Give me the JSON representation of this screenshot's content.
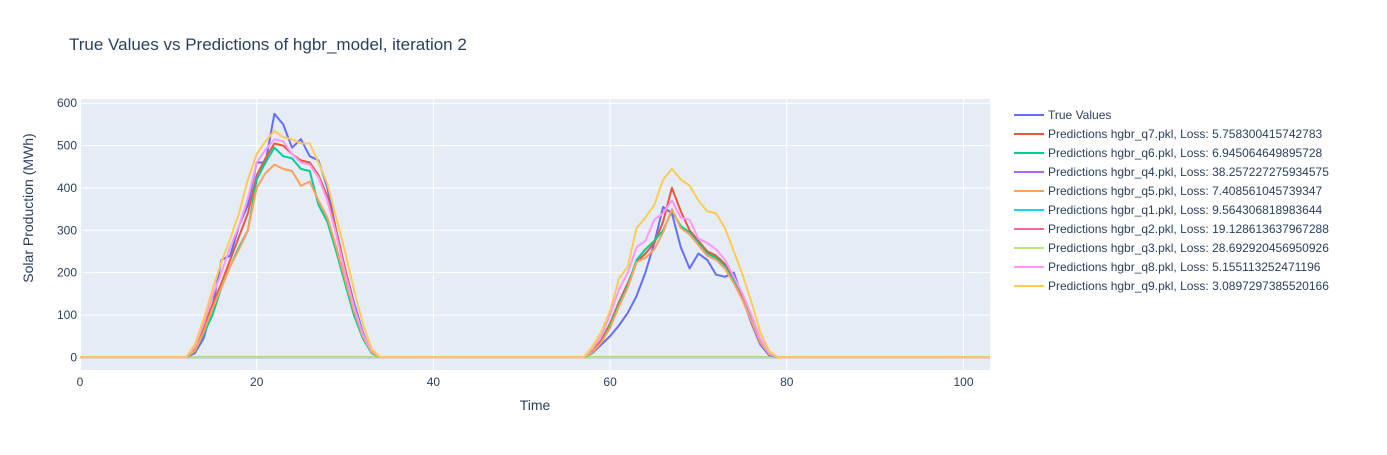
{
  "chart_data": {
    "type": "line",
    "title": "True Values vs Predictions of hgbr_model, iteration 2",
    "xlabel": "Time",
    "ylabel": "Solar Production (MWh)",
    "xlim": [
      0,
      103
    ],
    "ylim": [
      -30,
      610
    ],
    "xticks": [
      0,
      20,
      40,
      60,
      80,
      100
    ],
    "yticks": [
      0,
      100,
      200,
      300,
      400,
      500,
      600
    ],
    "grid": true,
    "legend_position": "right",
    "series": [
      {
        "name": "True Values",
        "color": "#636efa",
        "points": [
          [
            0,
            0
          ],
          [
            12,
            0
          ],
          [
            13,
            10
          ],
          [
            14,
            45
          ],
          [
            15,
            120
          ],
          [
            16,
            230
          ],
          [
            17,
            240
          ],
          [
            18,
            310
          ],
          [
            19,
            360
          ],
          [
            20,
            460
          ],
          [
            21,
            460
          ],
          [
            22,
            575
          ],
          [
            23,
            550
          ],
          [
            24,
            495
          ],
          [
            25,
            515
          ],
          [
            26,
            475
          ],
          [
            27,
            465
          ],
          [
            28,
            400
          ],
          [
            29,
            300
          ],
          [
            30,
            210
          ],
          [
            31,
            130
          ],
          [
            32,
            60
          ],
          [
            33,
            10
          ],
          [
            34,
            0
          ],
          [
            57,
            0
          ],
          [
            58,
            10
          ],
          [
            59,
            30
          ],
          [
            60,
            50
          ],
          [
            61,
            75
          ],
          [
            62,
            105
          ],
          [
            63,
            145
          ],
          [
            64,
            200
          ],
          [
            65,
            270
          ],
          [
            66,
            355
          ],
          [
            67,
            340
          ],
          [
            68,
            260
          ],
          [
            69,
            210
          ],
          [
            70,
            245
          ],
          [
            71,
            230
          ],
          [
            72,
            195
          ],
          [
            73,
            190
          ],
          [
            74,
            200
          ],
          [
            75,
            140
          ],
          [
            76,
            80
          ],
          [
            77,
            30
          ],
          [
            78,
            5
          ],
          [
            79,
            0
          ],
          [
            103,
            0
          ]
        ]
      },
      {
        "name": "Predictions hgbr_q7.pkl, Loss: 5.758300415742783",
        "color": "#EF553B",
        "points": [
          [
            0,
            0
          ],
          [
            12,
            0
          ],
          [
            13,
            20
          ],
          [
            14,
            70
          ],
          [
            15,
            125
          ],
          [
            16,
            175
          ],
          [
            17,
            230
          ],
          [
            18,
            285
          ],
          [
            19,
            340
          ],
          [
            20,
            430
          ],
          [
            21,
            470
          ],
          [
            22,
            505
          ],
          [
            23,
            500
          ],
          [
            24,
            480
          ],
          [
            25,
            465
          ],
          [
            26,
            460
          ],
          [
            27,
            430
          ],
          [
            28,
            380
          ],
          [
            29,
            300
          ],
          [
            30,
            210
          ],
          [
            31,
            120
          ],
          [
            32,
            55
          ],
          [
            33,
            15
          ],
          [
            34,
            0
          ],
          [
            57,
            0
          ],
          [
            58,
            15
          ],
          [
            59,
            40
          ],
          [
            60,
            80
          ],
          [
            61,
            130
          ],
          [
            62,
            175
          ],
          [
            63,
            225
          ],
          [
            64,
            245
          ],
          [
            65,
            270
          ],
          [
            66,
            320
          ],
          [
            67,
            400
          ],
          [
            68,
            345
          ],
          [
            69,
            300
          ],
          [
            70,
            275
          ],
          [
            71,
            250
          ],
          [
            72,
            240
          ],
          [
            73,
            220
          ],
          [
            74,
            185
          ],
          [
            75,
            140
          ],
          [
            76,
            95
          ],
          [
            77,
            40
          ],
          [
            78,
            10
          ],
          [
            79,
            0
          ],
          [
            103,
            0
          ]
        ]
      },
      {
        "name": "Predictions hgbr_q6.pkl, Loss: 6.945064649895728",
        "color": "#00cc96",
        "points": [
          [
            0,
            0
          ],
          [
            12,
            0
          ],
          [
            13,
            15
          ],
          [
            14,
            55
          ],
          [
            15,
            100
          ],
          [
            16,
            165
          ],
          [
            17,
            215
          ],
          [
            18,
            260
          ],
          [
            19,
            300
          ],
          [
            20,
            420
          ],
          [
            21,
            460
          ],
          [
            22,
            495
          ],
          [
            23,
            475
          ],
          [
            24,
            470
          ],
          [
            25,
            445
          ],
          [
            26,
            440
          ],
          [
            27,
            360
          ],
          [
            28,
            320
          ],
          [
            29,
            250
          ],
          [
            30,
            175
          ],
          [
            31,
            100
          ],
          [
            32,
            45
          ],
          [
            33,
            10
          ],
          [
            34,
            0
          ],
          [
            57,
            0
          ],
          [
            58,
            10
          ],
          [
            59,
            35
          ],
          [
            60,
            75
          ],
          [
            61,
            125
          ],
          [
            62,
            170
          ],
          [
            63,
            230
          ],
          [
            64,
            255
          ],
          [
            65,
            275
          ],
          [
            66,
            300
          ],
          [
            67,
            345
          ],
          [
            68,
            310
          ],
          [
            69,
            295
          ],
          [
            70,
            270
          ],
          [
            71,
            245
          ],
          [
            72,
            235
          ],
          [
            73,
            215
          ],
          [
            74,
            180
          ],
          [
            75,
            135
          ],
          [
            76,
            90
          ],
          [
            77,
            35
          ],
          [
            78,
            8
          ],
          [
            79,
            0
          ],
          [
            103,
            0
          ]
        ]
      },
      {
        "name": "Predictions hgbr_q4.pkl, Loss: 38.257227275934575",
        "color": "#ab63fa",
        "points": [
          [
            0,
            0
          ],
          [
            103,
            0
          ]
        ]
      },
      {
        "name": "Predictions hgbr_q5.pkl, Loss: 7.408561045739347",
        "color": "#FFA15A",
        "points": [
          [
            0,
            0
          ],
          [
            12,
            0
          ],
          [
            13,
            15
          ],
          [
            14,
            60
          ],
          [
            15,
            115
          ],
          [
            16,
            165
          ],
          [
            17,
            215
          ],
          [
            18,
            255
          ],
          [
            19,
            300
          ],
          [
            20,
            400
          ],
          [
            21,
            435
          ],
          [
            22,
            455
          ],
          [
            23,
            445
          ],
          [
            24,
            440
          ],
          [
            25,
            405
          ],
          [
            26,
            415
          ],
          [
            27,
            370
          ],
          [
            28,
            330
          ],
          [
            29,
            260
          ],
          [
            30,
            185
          ],
          [
            31,
            110
          ],
          [
            32,
            50
          ],
          [
            33,
            12
          ],
          [
            34,
            0
          ],
          [
            57,
            0
          ],
          [
            58,
            12
          ],
          [
            59,
            35
          ],
          [
            60,
            70
          ],
          [
            61,
            120
          ],
          [
            62,
            165
          ],
          [
            63,
            225
          ],
          [
            64,
            235
          ],
          [
            65,
            255
          ],
          [
            66,
            295
          ],
          [
            67,
            350
          ],
          [
            68,
            305
          ],
          [
            69,
            290
          ],
          [
            70,
            265
          ],
          [
            71,
            240
          ],
          [
            72,
            230
          ],
          [
            73,
            210
          ],
          [
            74,
            175
          ],
          [
            75,
            135
          ],
          [
            76,
            85
          ],
          [
            77,
            35
          ],
          [
            78,
            8
          ],
          [
            79,
            0
          ],
          [
            103,
            0
          ]
        ]
      },
      {
        "name": "Predictions hgbr_q1.pkl, Loss: 9.564306818983644",
        "color": "#19d3f3",
        "points": [
          [
            0,
            0
          ],
          [
            103,
            0
          ]
        ]
      },
      {
        "name": "Predictions hgbr_q2.pkl, Loss: 19.128613637967288",
        "color": "#FF6692",
        "points": [
          [
            0,
            0
          ],
          [
            103,
            0
          ]
        ]
      },
      {
        "name": "Predictions hgbr_q3.pkl, Loss: 28.692920456950926",
        "color": "#B6E880",
        "points": [
          [
            0,
            0
          ],
          [
            103,
            0
          ]
        ]
      },
      {
        "name": "Predictions hgbr_q8.pkl, Loss: 5.155113252471196",
        "color": "#FF97FF",
        "points": [
          [
            0,
            0
          ],
          [
            12,
            0
          ],
          [
            13,
            25
          ],
          [
            14,
            80
          ],
          [
            15,
            145
          ],
          [
            16,
            200
          ],
          [
            17,
            260
          ],
          [
            18,
            310
          ],
          [
            19,
            375
          ],
          [
            20,
            460
          ],
          [
            21,
            490
          ],
          [
            22,
            515
          ],
          [
            23,
            510
          ],
          [
            24,
            480
          ],
          [
            25,
            460
          ],
          [
            26,
            455
          ],
          [
            27,
            425
          ],
          [
            28,
            370
          ],
          [
            29,
            290
          ],
          [
            30,
            200
          ],
          [
            31,
            120
          ],
          [
            32,
            55
          ],
          [
            33,
            15
          ],
          [
            34,
            0
          ],
          [
            57,
            0
          ],
          [
            58,
            20
          ],
          [
            59,
            50
          ],
          [
            60,
            100
          ],
          [
            61,
            160
          ],
          [
            62,
            200
          ],
          [
            63,
            260
          ],
          [
            64,
            275
          ],
          [
            65,
            325
          ],
          [
            66,
            340
          ],
          [
            67,
            370
          ],
          [
            68,
            330
          ],
          [
            69,
            325
          ],
          [
            70,
            280
          ],
          [
            71,
            270
          ],
          [
            72,
            255
          ],
          [
            73,
            230
          ],
          [
            74,
            190
          ],
          [
            75,
            150
          ],
          [
            76,
            100
          ],
          [
            77,
            45
          ],
          [
            78,
            10
          ],
          [
            79,
            0
          ],
          [
            103,
            0
          ]
        ]
      },
      {
        "name": "Predictions hgbr_q9.pkl, Loss: 3.0897297385520166",
        "color": "#FECB52",
        "points": [
          [
            0,
            0
          ],
          [
            12,
            0
          ],
          [
            13,
            30
          ],
          [
            14,
            90
          ],
          [
            15,
            160
          ],
          [
            16,
            225
          ],
          [
            17,
            280
          ],
          [
            18,
            340
          ],
          [
            19,
            420
          ],
          [
            20,
            480
          ],
          [
            21,
            510
          ],
          [
            22,
            535
          ],
          [
            23,
            520
          ],
          [
            24,
            515
          ],
          [
            25,
            505
          ],
          [
            26,
            505
          ],
          [
            27,
            460
          ],
          [
            28,
            410
          ],
          [
            29,
            330
          ],
          [
            30,
            250
          ],
          [
            31,
            160
          ],
          [
            32,
            80
          ],
          [
            33,
            20
          ],
          [
            34,
            0
          ],
          [
            57,
            0
          ],
          [
            58,
            25
          ],
          [
            59,
            60
          ],
          [
            60,
            110
          ],
          [
            61,
            185
          ],
          [
            62,
            215
          ],
          [
            63,
            305
          ],
          [
            64,
            330
          ],
          [
            65,
            360
          ],
          [
            66,
            420
          ],
          [
            67,
            445
          ],
          [
            68,
            420
          ],
          [
            69,
            405
          ],
          [
            70,
            370
          ],
          [
            71,
            345
          ],
          [
            72,
            340
          ],
          [
            73,
            305
          ],
          [
            74,
            250
          ],
          [
            75,
            195
          ],
          [
            76,
            130
          ],
          [
            77,
            60
          ],
          [
            78,
            15
          ],
          [
            79,
            0
          ],
          [
            103,
            0
          ]
        ]
      }
    ]
  }
}
